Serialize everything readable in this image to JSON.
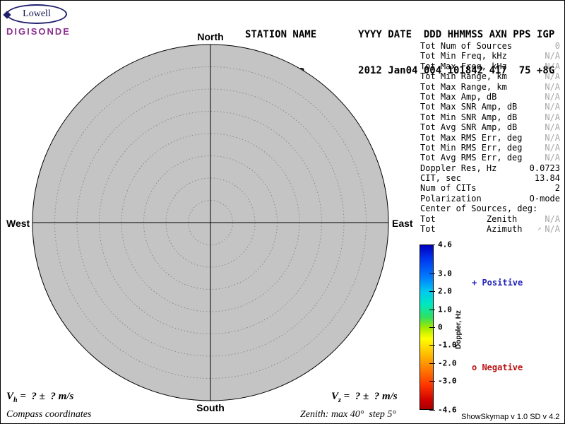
{
  "logo": {
    "name": "Lowell",
    "product": "DIGISONDE"
  },
  "header": {
    "line1": "STATION NAME       YYYY DATE  DDD HHMMSS AXN PPS IGP",
    "line2": " Jicamarca         2012 Jan04 004 101842 417  75 +8G"
  },
  "compass": {
    "north": "North",
    "south": "South",
    "west": "West",
    "east": "East"
  },
  "skymap": {
    "zenith_max_deg": 40,
    "zenith_step_deg": 5,
    "num_sources": 0,
    "fill_color": "#c4c4c4"
  },
  "stats": {
    "rows": [
      {
        "label": "Tot Num of Sources",
        "value": "0",
        "dim": true
      },
      {
        "label": "Tot Min Freq, kHz",
        "value": "N/A",
        "dim": true
      },
      {
        "label": "Tot Max Freq, kHz",
        "value": "N/A",
        "dim": true
      },
      {
        "label": "Tot Min Range, km",
        "value": "N/A",
        "dim": true
      },
      {
        "label": "Tot Max Range, km",
        "value": "N/A",
        "dim": true
      },
      {
        "label": "Tot Max Amp, dB",
        "value": "N/A",
        "dim": true
      },
      {
        "label": "Tot Max SNR Amp, dB",
        "value": "N/A",
        "dim": true
      },
      {
        "label": "Tot Min SNR Amp, dB",
        "value": "N/A",
        "dim": true
      },
      {
        "label": "Tot Avg SNR Amp, dB",
        "value": "N/A",
        "dim": true
      },
      {
        "label": "Tot Max RMS Err, deg",
        "value": "N/A",
        "dim": true
      },
      {
        "label": "Tot Min RMS Err, deg",
        "value": "N/A",
        "dim": true
      },
      {
        "label": "Tot Avg RMS Err, deg",
        "value": "N/A",
        "dim": true
      },
      {
        "label": "Doppler Res, Hz",
        "value": "0.0723",
        "dim": false
      },
      {
        "label": "CIT, sec",
        "value": "13.84",
        "dim": false
      },
      {
        "label": "Num of CITs",
        "value": "2",
        "dim": false
      },
      {
        "label": "Polarization",
        "value": "O-mode",
        "dim": false
      },
      {
        "label": "Center of Sources, deg:",
        "value": "",
        "dim": false
      },
      {
        "label": "Tot          Zenith",
        "value": "N/A",
        "dim": true
      },
      {
        "label": "Tot          Azimuth",
        "value": "N/A",
        "dim": true,
        "icon": "↗"
      }
    ]
  },
  "colorbar": {
    "title": "Doppler, Hz",
    "max": 4.6,
    "min": -4.6,
    "ticks": [
      "4.6",
      "3.0",
      "2.0",
      "1.0",
      "0",
      "-1.0",
      "-2.0",
      "-3.0",
      "-4.6"
    ],
    "top_color": "#0000bb",
    "bottom_color": "#aa0000"
  },
  "legend": {
    "positive": {
      "marker": "+",
      "label": " Positive",
      "color": "#2222bb"
    },
    "negative": {
      "marker": "o",
      "label": " Negative",
      "color": "#bb1111"
    }
  },
  "footer": {
    "vh_base": "V",
    "vh_sub": "h",
    "vh_rest": " =  ? ±  ? m/s",
    "vz_base": "V",
    "vz_sub": "z",
    "vz_rest": " =  ? ±  ? m/s",
    "coordinates_note": "Compass coordinates",
    "zenith_note": "Zenith: max 40°  step 5°",
    "version": "ShowSkymap v 1.0  SD v 4.2"
  }
}
